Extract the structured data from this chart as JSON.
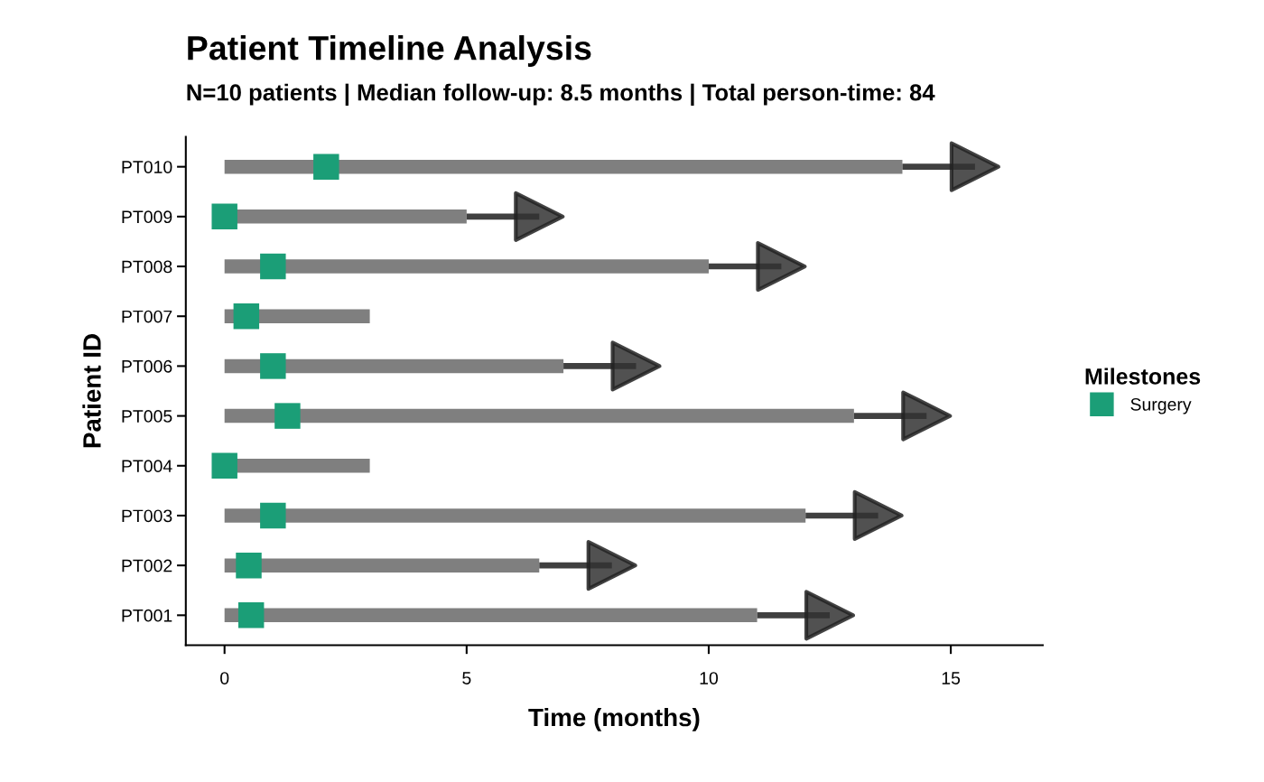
{
  "chart_data": {
    "type": "bar",
    "orientation": "horizontal",
    "stacked": true,
    "title": "Patient Timeline Analysis",
    "subtitle": "N=10 patients | Median follow-up: 8.5 months | Total person-time: 84",
    "xlabel": "Time (months)",
    "ylabel": "Patient ID",
    "legend_title": "Milestones",
    "legend": "right",
    "categories": [
      "PT010",
      "PT009",
      "PT008",
      "PT007",
      "PT006",
      "PT005",
      "PT004",
      "PT003",
      "PT002",
      "PT001"
    ],
    "series": [
      {
        "color": "#7f7f7f",
        "values": [
          14,
          5,
          10,
          3,
          7,
          13,
          3,
          12,
          6.5,
          11
        ]
      },
      {
        "color": "#404040",
        "values": [
          1.5,
          1.5,
          1.5,
          null,
          1.5,
          1.5,
          null,
          1.5,
          1.5,
          1.5
        ]
      },
      {
        "type": "scatter",
        "marker": "triangle",
        "color": "#333333",
        "values": [
          15.5,
          6.5,
          11.5,
          null,
          8.5,
          14.5,
          null,
          13.5,
          8.0,
          12.5
        ]
      },
      {
        "type": "scatter",
        "marker": "square",
        "name": "Surgery",
        "color": "#1b9e77",
        "values": [
          2.1,
          0,
          1.0,
          0.45,
          1.0,
          1.3,
          0,
          1.0,
          0.5,
          0.55
        ]
      }
    ],
    "xlim": [
      -0.8,
      16.9
    ],
    "xticks": [
      0,
      5,
      10,
      15
    ],
    "grid": false
  }
}
